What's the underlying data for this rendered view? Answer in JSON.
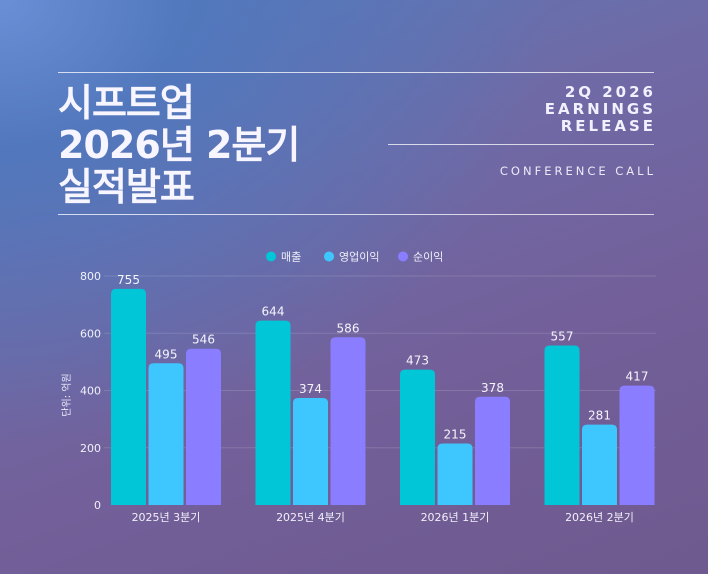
{
  "title": {
    "line1": "시프트업",
    "line2": "2026년 2분기",
    "line3": "실적발표"
  },
  "english": {
    "line1": "2Q 2026",
    "line2": "EARNINGS",
    "line3": "RELEASE",
    "subtitle": "CONFERENCE CALL"
  },
  "colors": {
    "매출": "#00c6d7",
    "영업이익": "#3ec7ff",
    "순이익": "#8a7dff"
  },
  "chart_data": {
    "type": "bar",
    "categories": [
      "2025년 3분기",
      "2025년 4분기",
      "2026년 1분기",
      "2026년 2분기"
    ],
    "series": [
      {
        "name": "매출",
        "values": [
          755,
          644,
          473,
          557
        ]
      },
      {
        "name": "영업이익",
        "values": [
          495,
          374,
          215,
          281
        ]
      },
      {
        "name": "순이익",
        "values": [
          546,
          586,
          378,
          417
        ]
      }
    ],
    "ylabel": "단위: 억원",
    "ylim": [
      0,
      800
    ],
    "yticks": [
      0,
      200,
      400,
      600,
      800
    ],
    "legend_position": "top-center",
    "grid": true
  }
}
